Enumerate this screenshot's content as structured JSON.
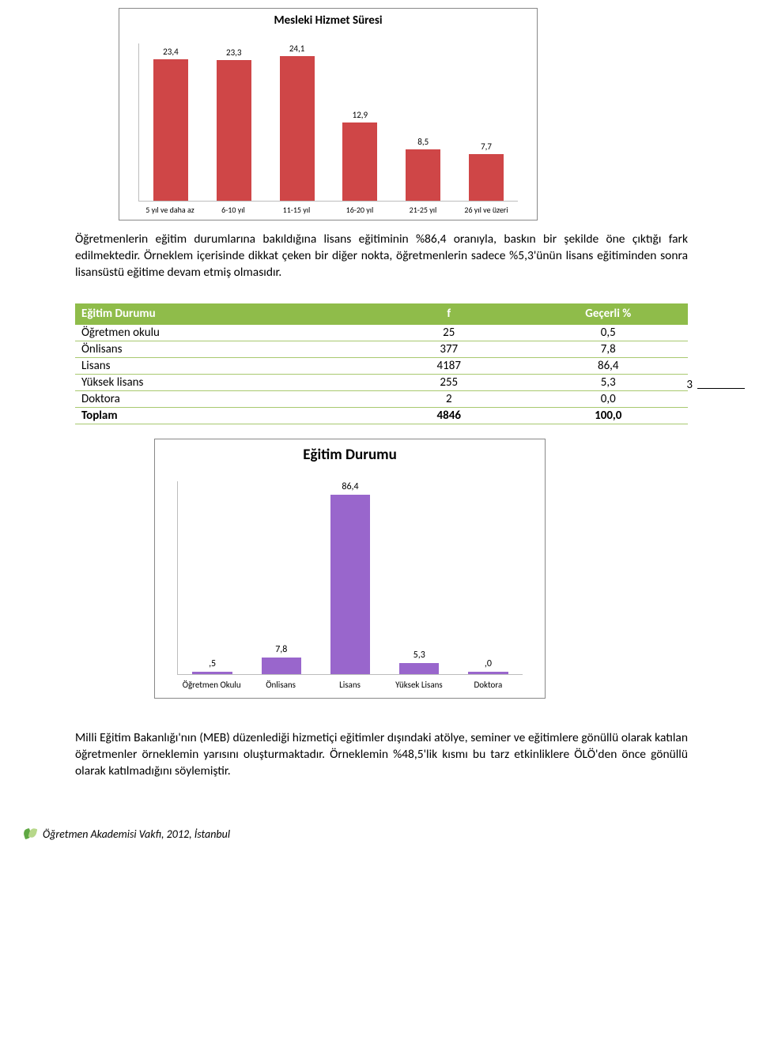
{
  "chart1": {
    "type": "bar",
    "title": "Mesleki Hizmet Süresi",
    "title_fontsize": 15,
    "categories": [
      "5 yıl ve daha az",
      "6-10 yıl",
      "11-15 yıl",
      "16-20 yıl",
      "21-25 yıl",
      "26 yıl ve üzeri"
    ],
    "values": [
      23.4,
      23.3,
      24.1,
      12.9,
      8.5,
      7.7
    ],
    "value_labels": [
      "23,4",
      "23,3",
      "24,1",
      "12,9",
      "8,5",
      "7,7"
    ],
    "bar_color": "#cf4647",
    "axis_color": "#bdbdbd",
    "ylim_max": 26,
    "label_fontsize": 10,
    "value_fontsize": 11,
    "background_color": "#ffffff"
  },
  "para1": "Öğretmenlerin eğitim durumlarına bakıldığına lisans eğitiminin %86,4 oranıyla, baskın bir şekilde öne çıktığı fark edilmektedir. Örneklem içerisinde dikkat çeken bir diğer nokta, öğretmenlerin sadece %5,3'ünün lisans eğitiminden sonra lisansüstü eğitime devam etmiş olmasıdır.",
  "table": {
    "header_bg": "#8fbc4a",
    "border_color": "#a8c96f",
    "header_text_color": "#ffffff",
    "columns": [
      "Eğitim Durumu",
      "f",
      "Geçerli %"
    ],
    "rows": [
      [
        "Öğretmen okulu",
        "25",
        "0,5"
      ],
      [
        "Önlisans",
        "377",
        "7,8"
      ],
      [
        "Lisans",
        "4187",
        "86,4"
      ],
      [
        "Yüksek lisans",
        "255",
        "5,3"
      ],
      [
        "Doktora",
        "2",
        "0,0"
      ]
    ],
    "total_row": [
      "Toplam",
      "4846",
      "100,0"
    ]
  },
  "page_number": "3",
  "chart2": {
    "type": "bar",
    "title": "Eğitim Durumu",
    "title_fontsize": 19,
    "categories": [
      "Öğretmen Okulu",
      "Önlisans",
      "Lisans",
      "Yüksek Lisans",
      "Doktora"
    ],
    "values": [
      0.5,
      7.8,
      86.4,
      5.3,
      0.0
    ],
    "value_labels": [
      ",5",
      "7,8",
      "86,4",
      "5,3",
      ",0"
    ],
    "bar_color": "#9966cc",
    "axis_color": "#bdbdbd",
    "ylim_max": 92,
    "label_fontsize": 11,
    "value_fontsize": 12,
    "background_color": "#ffffff"
  },
  "para2": "Milli Eğitim Bakanlığı'nın (MEB) düzenlediği hizmetiçi eğitimler dışındaki atölye, seminer ve eğitimlere gönüllü olarak katılan öğretmenler örneklemin yarısını oluşturmaktadır. Örneklemin %48,5'lik kısmı bu tarz etkinliklere ÖLÖ'den önce gönüllü olarak katılmadığını söylemiştir.",
  "footer": {
    "text": "Öğretmen Akademisi Vakfı, 2012, İstanbul",
    "logo_colors": [
      "#5fa843",
      "#b7d88a"
    ]
  }
}
